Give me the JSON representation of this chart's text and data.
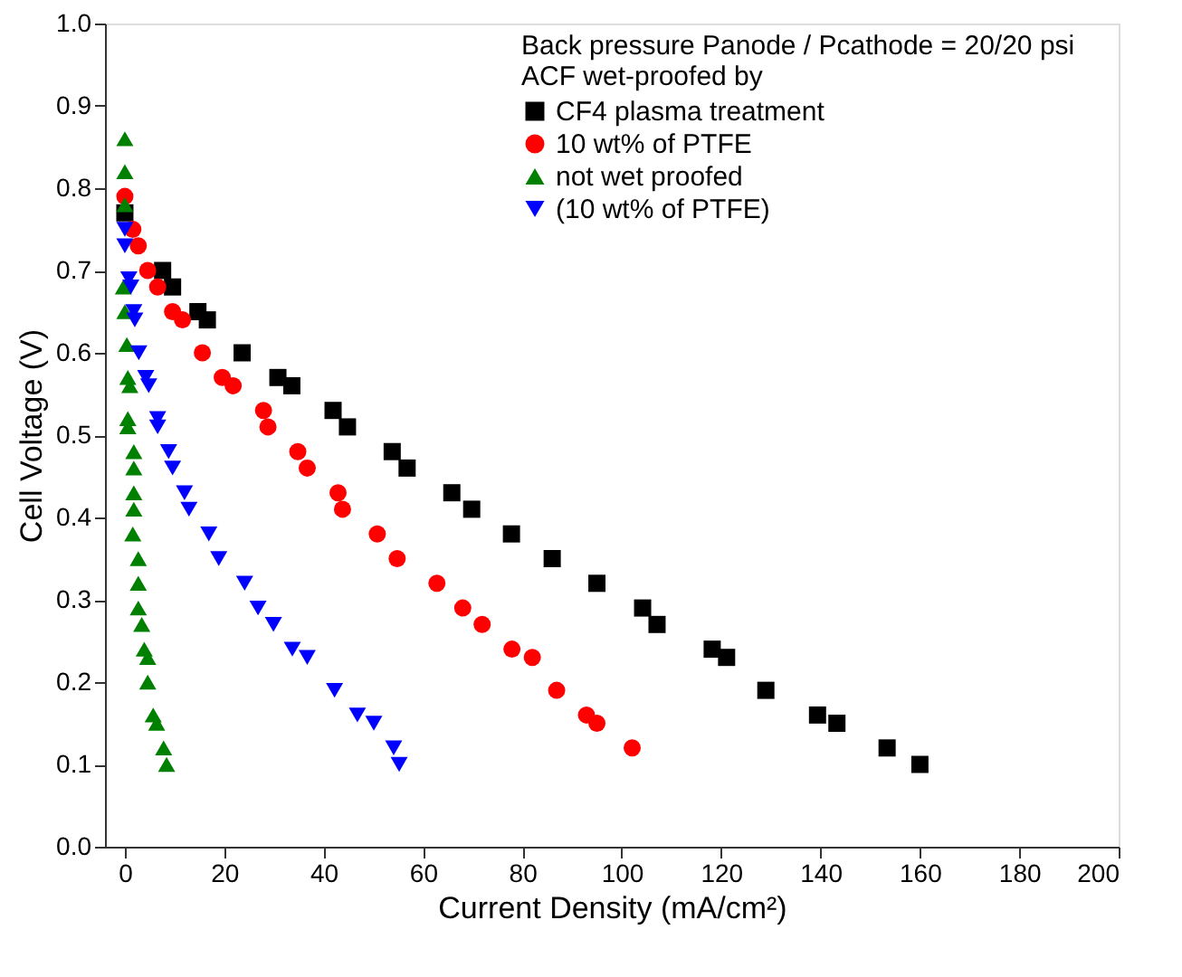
{
  "chart_data": {
    "type": "scatter",
    "xlabel": "Current Density (mA/cm²)",
    "ylabel": "Cell Voltage (V)",
    "legend_title": "ACF wet-proofed by",
    "annotations": [
      "Back pressure Panode / Pcathode = 20/20 psi"
    ],
    "xlim": [
      -4,
      200
    ],
    "xticks": [
      0,
      20,
      40,
      60,
      80,
      100,
      120,
      140,
      160,
      180,
      200
    ],
    "ylim": [
      0,
      1.0
    ],
    "yticks": [
      {
        "value": 0,
        "label": "0.0"
      },
      0.1,
      0.2,
      0.3,
      0.4,
      0.5,
      0.6,
      0.7,
      0.8,
      0.9,
      {
        "value": 1,
        "label": "1.0"
      }
    ],
    "grid": false,
    "legend": "top right",
    "series": [
      {
        "name": "CF4 plasma treatment",
        "color": "#000000",
        "marker": "square",
        "x": [
          0,
          7.6,
          9.6,
          14.7,
          16.6,
          23.6,
          30.8,
          33.6,
          41.9,
          44.8,
          53.8,
          56.8,
          65.8,
          69.8,
          77.8,
          86,
          95,
          104.2,
          107.1,
          118.2,
          121.1,
          129,
          139.4,
          143.3,
          153.4,
          160
        ],
        "values": [
          0.77,
          0.7,
          0.68,
          0.65,
          0.64,
          0.6,
          0.57,
          0.56,
          0.53,
          0.51,
          0.48,
          0.46,
          0.43,
          0.41,
          0.38,
          0.35,
          0.32,
          0.29,
          0.27,
          0.24,
          0.23,
          0.19,
          0.16,
          0.15,
          0.12,
          0.1
        ]
      },
      {
        "name": "10 wt% of PTFE",
        "color": "#ff0000",
        "marker": "circle",
        "x": [
          0,
          1.6,
          2.7,
          4.6,
          6.6,
          9.6,
          11.6,
          15.6,
          19.6,
          21.8,
          27.9,
          28.8,
          34.8,
          36.7,
          42.9,
          43.8,
          50.8,
          54.8,
          62.8,
          68,
          71.9,
          77.9,
          82,
          86.9,
          92.9,
          95,
          102.1
        ],
        "values": [
          0.79,
          0.75,
          0.73,
          0.7,
          0.68,
          0.65,
          0.64,
          0.6,
          0.57,
          0.56,
          0.53,
          0.51,
          0.48,
          0.46,
          0.43,
          0.41,
          0.38,
          0.35,
          0.32,
          0.29,
          0.27,
          0.24,
          0.23,
          0.19,
          0.16,
          0.15,
          0.12
        ]
      },
      {
        "name": "not wet proofed",
        "color": "#008000",
        "marker": "triangle",
        "x": [
          0,
          0,
          0,
          -0.3,
          0,
          0.4,
          0.6,
          1,
          0.6,
          0.6,
          1.8,
          1.8,
          1.8,
          1.8,
          1.6,
          2.7,
          2.7,
          2.7,
          3.4,
          3.9,
          4.6,
          4.6,
          5.7,
          6.4,
          7.8,
          8.4
        ],
        "values": [
          0.86,
          0.82,
          0.78,
          0.68,
          0.65,
          0.61,
          0.57,
          0.56,
          0.52,
          0.51,
          0.48,
          0.46,
          0.43,
          0.41,
          0.38,
          0.35,
          0.32,
          0.29,
          0.27,
          0.24,
          0.23,
          0.2,
          0.16,
          0.15,
          0.12,
          0.1
        ]
      },
      {
        "name": "(10 wt% of PTFE)",
        "color": "#0000ff",
        "marker": "triangle-down",
        "x": [
          0,
          0,
          0.8,
          1.2,
          1.8,
          2,
          2.8,
          4.2,
          4.8,
          6.6,
          6.6,
          8.8,
          9.6,
          12,
          12.9,
          16.9,
          18.9,
          24.1,
          26.8,
          29.9,
          33.7,
          36.7,
          42.2,
          46.8,
          50.1,
          54.1,
          55.2
        ],
        "values": [
          0.75,
          0.73,
          0.69,
          0.68,
          0.65,
          0.64,
          0.6,
          0.57,
          0.56,
          0.52,
          0.51,
          0.48,
          0.46,
          0.43,
          0.41,
          0.38,
          0.35,
          0.32,
          0.29,
          0.27,
          0.24,
          0.23,
          0.19,
          0.16,
          0.15,
          0.12,
          0.1
        ]
      }
    ]
  }
}
